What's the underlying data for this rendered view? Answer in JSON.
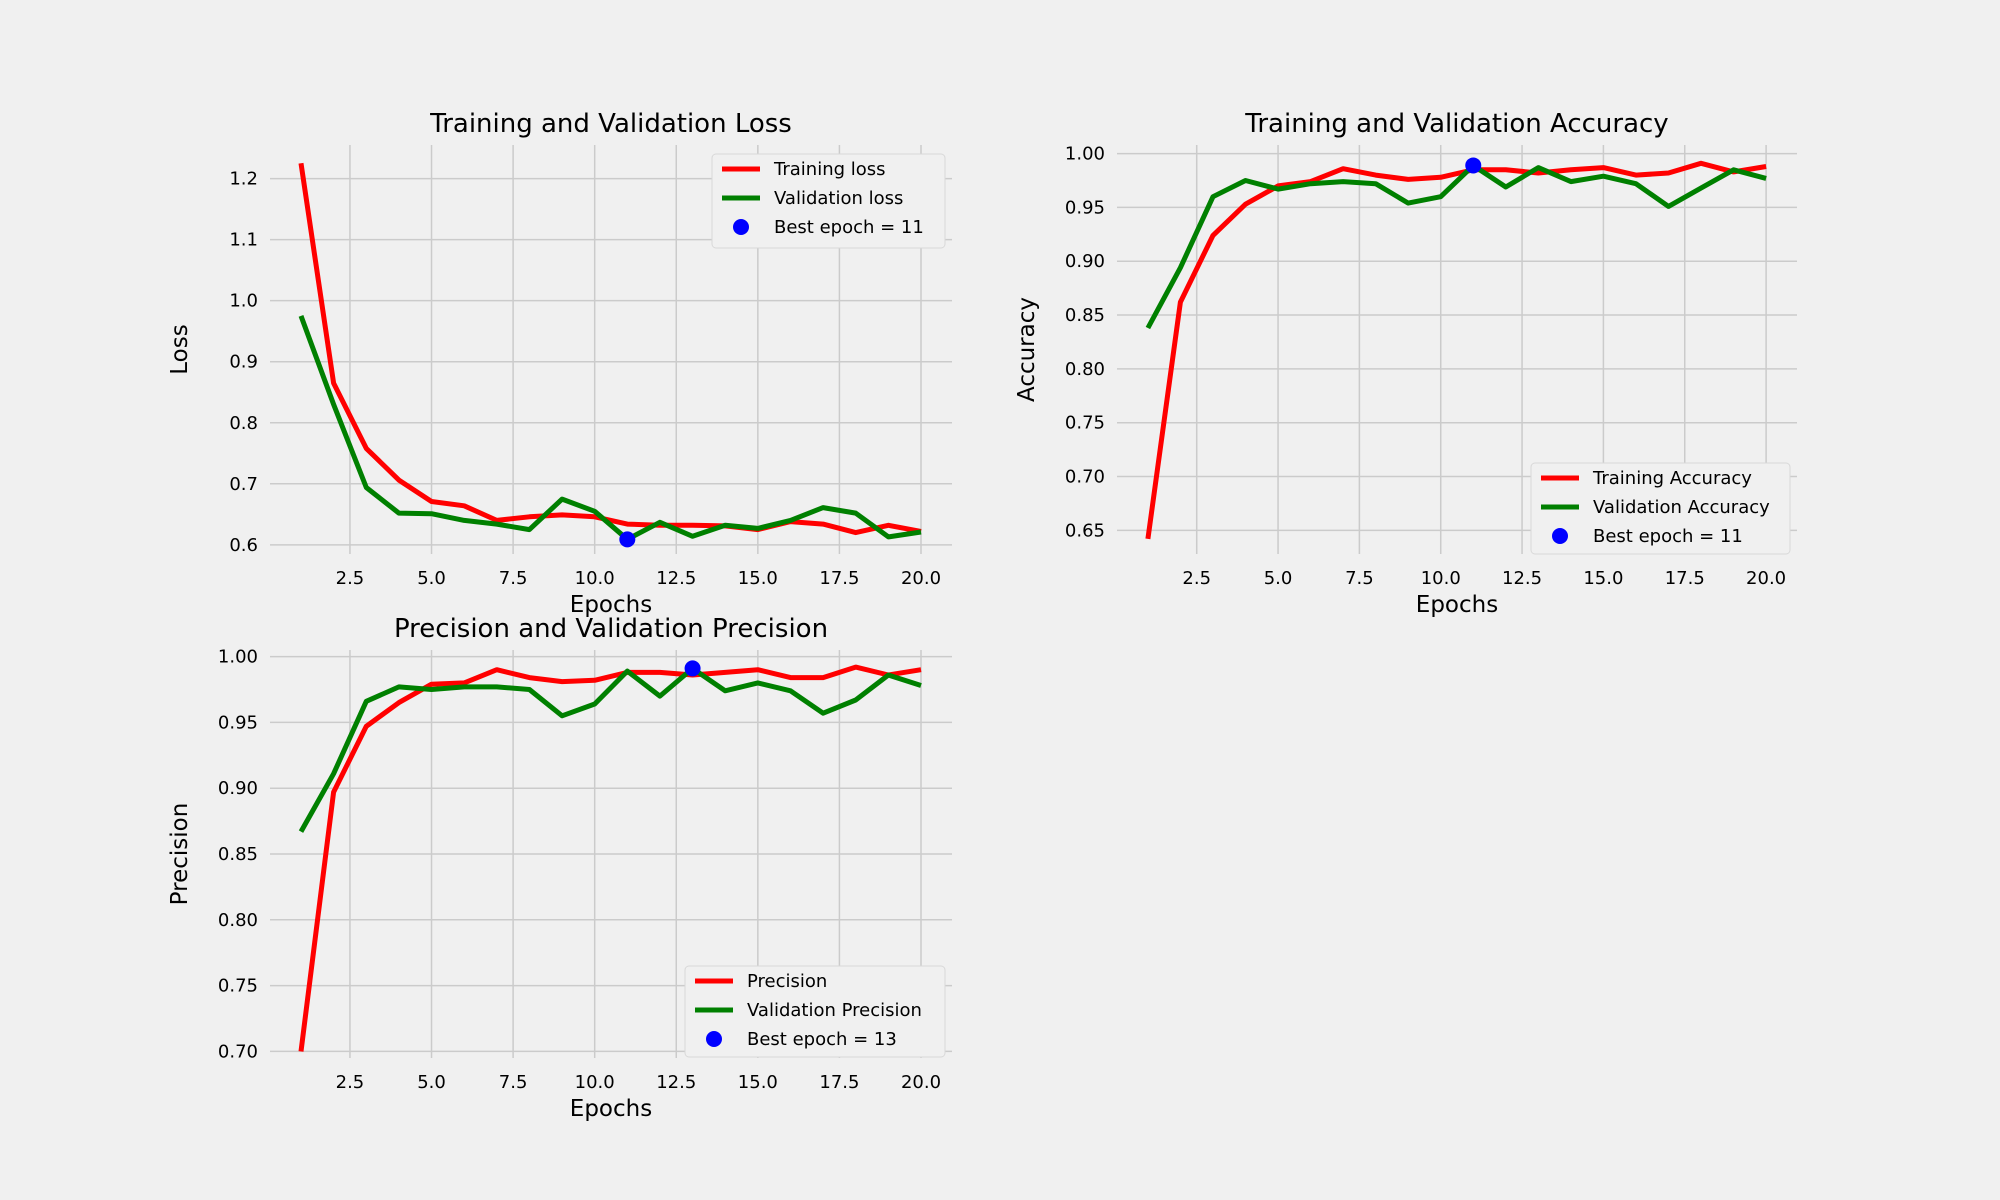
{
  "colors": {
    "background": "#f0f0f0",
    "grid": "#cbcbcb",
    "training": "#ff0000",
    "validation": "#008000",
    "best": "#0000ff"
  },
  "chart_data": [
    {
      "type": "line",
      "title": "Training and Validation Loss",
      "xlabel": "Epochs",
      "ylabel": "Loss",
      "x": [
        1,
        2,
        3,
        4,
        5,
        6,
        7,
        8,
        9,
        10,
        11,
        12,
        13,
        14,
        15,
        16,
        17,
        18,
        19,
        20
      ],
      "xlim": [
        0.05,
        20.95
      ],
      "ylim": [
        0.585,
        1.255
      ],
      "xticks": [
        2.5,
        5.0,
        7.5,
        10.0,
        12.5,
        15.0,
        17.5,
        20.0
      ],
      "xtick_labels": [
        "2.5",
        "5.0",
        "7.5",
        "10.0",
        "12.5",
        "15.0",
        "17.5",
        "20.0"
      ],
      "yticks": [
        0.6,
        0.7,
        0.8,
        0.9,
        1.0,
        1.1,
        1.2
      ],
      "ytick_labels": [
        "0.6",
        "0.7",
        "0.8",
        "0.9",
        "1.0",
        "1.1",
        "1.2"
      ],
      "grid": true,
      "legend_position": "top-right",
      "series": [
        {
          "name": "Training loss",
          "color": "#ff0000",
          "values": [
            1.225,
            0.865,
            0.758,
            0.706,
            0.671,
            0.664,
            0.64,
            0.646,
            0.649,
            0.646,
            0.634,
            0.632,
            0.632,
            0.631,
            0.625,
            0.638,
            0.634,
            0.62,
            0.632,
            0.622
          ]
        },
        {
          "name": "Validation loss",
          "color": "#008000",
          "values": [
            0.975,
            0.83,
            0.694,
            0.652,
            0.651,
            0.64,
            0.634,
            0.625,
            0.675,
            0.655,
            0.609,
            0.637,
            0.614,
            0.632,
            0.627,
            0.64,
            0.661,
            0.652,
            0.613,
            0.621
          ]
        }
      ],
      "best_point": {
        "label": "Best epoch = 11",
        "x": 11,
        "y": 0.609,
        "color": "#0000ff"
      }
    },
    {
      "type": "line",
      "title": "Training and Validation Accuracy",
      "xlabel": "Epochs",
      "ylabel": "Accuracy",
      "x": [
        1,
        2,
        3,
        4,
        5,
        6,
        7,
        8,
        9,
        10,
        11,
        12,
        13,
        14,
        15,
        16,
        17,
        18,
        19,
        20
      ],
      "xlim": [
        0.05,
        20.95
      ],
      "ylim": [
        0.628,
        1.008
      ],
      "xticks": [
        2.5,
        5.0,
        7.5,
        10.0,
        12.5,
        15.0,
        17.5,
        20.0
      ],
      "xtick_labels": [
        "2.5",
        "5.0",
        "7.5",
        "10.0",
        "12.5",
        "15.0",
        "17.5",
        "20.0"
      ],
      "yticks": [
        0.65,
        0.7,
        0.75,
        0.8,
        0.85,
        0.9,
        0.95,
        1.0
      ],
      "ytick_labels": [
        "0.65",
        "0.70",
        "0.75",
        "0.80",
        "0.85",
        "0.90",
        "0.95",
        "1.00"
      ],
      "grid": true,
      "legend_position": "bottom-right",
      "series": [
        {
          "name": "Training Accuracy",
          "color": "#ff0000",
          "values": [
            0.642,
            0.862,
            0.924,
            0.953,
            0.97,
            0.974,
            0.986,
            0.98,
            0.976,
            0.978,
            0.985,
            0.985,
            0.982,
            0.985,
            0.987,
            0.98,
            0.982,
            0.991,
            0.983,
            0.988
          ]
        },
        {
          "name": "Validation Accuracy",
          "color": "#008000",
          "values": [
            0.838,
            0.894,
            0.96,
            0.975,
            0.967,
            0.972,
            0.974,
            0.972,
            0.954,
            0.96,
            0.989,
            0.969,
            0.987,
            0.974,
            0.979,
            0.972,
            0.951,
            0.968,
            0.985,
            0.977
          ]
        }
      ],
      "best_point": {
        "label": "Best epoch = 11",
        "x": 11,
        "y": 0.989,
        "color": "#0000ff"
      }
    },
    {
      "type": "line",
      "title": "Precision and Validation Precision",
      "xlabel": "Epochs",
      "ylabel": "Precision",
      "x": [
        1,
        2,
        3,
        4,
        5,
        6,
        7,
        8,
        9,
        10,
        11,
        12,
        13,
        14,
        15,
        16,
        17,
        18,
        19,
        20
      ],
      "xlim": [
        0.05,
        20.95
      ],
      "ylim": [
        0.695,
        1.005
      ],
      "xticks": [
        2.5,
        5.0,
        7.5,
        10.0,
        12.5,
        15.0,
        17.5,
        20.0
      ],
      "xtick_labels": [
        "2.5",
        "5.0",
        "7.5",
        "10.0",
        "12.5",
        "15.0",
        "17.5",
        "20.0"
      ],
      "yticks": [
        0.7,
        0.75,
        0.8,
        0.85,
        0.9,
        0.95,
        1.0
      ],
      "ytick_labels": [
        "0.70",
        "0.75",
        "0.80",
        "0.85",
        "0.90",
        "0.95",
        "1.00"
      ],
      "grid": true,
      "legend_position": "bottom-right",
      "series": [
        {
          "name": "Precision",
          "color": "#ff0000",
          "values": [
            0.7,
            0.897,
            0.947,
            0.965,
            0.979,
            0.98,
            0.99,
            0.984,
            0.981,
            0.982,
            0.988,
            0.988,
            0.986,
            0.988,
            0.99,
            0.984,
            0.984,
            0.992,
            0.986,
            0.99
          ]
        },
        {
          "name": "Validation Precision",
          "color": "#008000",
          "values": [
            0.867,
            0.911,
            0.966,
            0.977,
            0.975,
            0.977,
            0.977,
            0.975,
            0.955,
            0.964,
            0.989,
            0.97,
            0.991,
            0.974,
            0.98,
            0.974,
            0.957,
            0.967,
            0.986,
            0.978
          ]
        }
      ],
      "best_point": {
        "label": "Best epoch = 13",
        "x": 13,
        "y": 0.991,
        "color": "#0000ff"
      }
    }
  ]
}
